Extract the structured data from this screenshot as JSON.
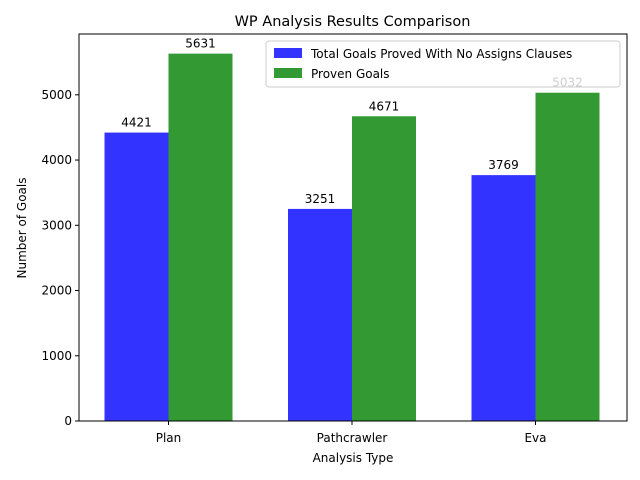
{
  "chart_data": {
    "type": "bar",
    "title": "WP Analysis Results Comparison",
    "xlabel": "Analysis Type",
    "ylabel": "Number of Goals",
    "categories": [
      "Plan",
      "Pathcrawler",
      "Eva"
    ],
    "series": [
      {
        "name": "Total Goals Proved With No Assigns Clauses",
        "values": [
          4421,
          3251,
          3769
        ],
        "color": "#3333ff",
        "label_color": "#000000"
      },
      {
        "name": "Proven Goals",
        "values": [
          5631,
          4671,
          5032
        ],
        "color": "#339933",
        "label_color": "#000000"
      }
    ],
    "data_labels": [
      [
        "4421",
        "3251",
        "3769"
      ],
      [
        "5631",
        "4671",
        "5032"
      ]
    ],
    "label_colors": [
      [
        "#000000",
        "#000000",
        "#000000"
      ],
      [
        "#000000",
        "#000000",
        "#cccccc"
      ]
    ],
    "ylim": [
      0,
      5932
    ],
    "yticks": [
      0,
      1000,
      2000,
      3000,
      4000,
      5000
    ],
    "ytick_labels": [
      "0",
      "1000",
      "2000",
      "3000",
      "4000",
      "5000"
    ],
    "grid": false,
    "legend_position": "top-right"
  }
}
